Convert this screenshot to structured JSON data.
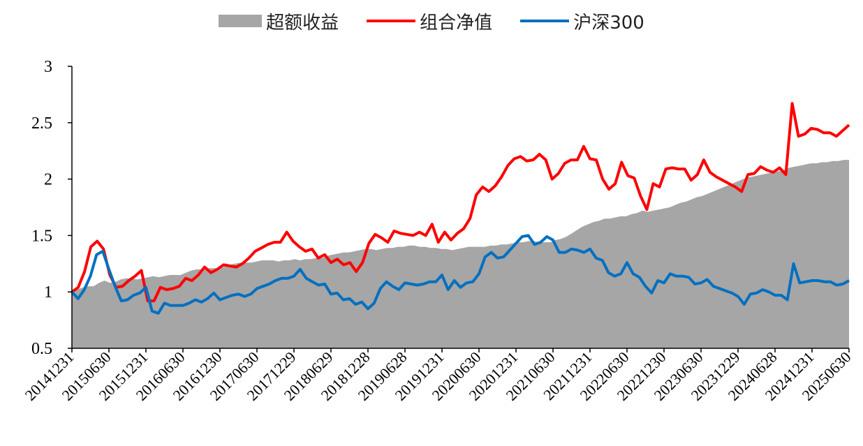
{
  "legend": {
    "area_label": "超额收益",
    "line1_label": "组合净值",
    "line2_label": "沪深300"
  },
  "colors": {
    "area": "#a6a6a6",
    "line1": "#ff0000",
    "line2": "#0070c0",
    "axis": "#000000"
  },
  "chart_data": {
    "type": "line",
    "ylim": [
      0.5,
      3
    ],
    "yticks": [
      "0.5",
      "1",
      "1.5",
      "2",
      "2.5",
      "3"
    ],
    "x_tick_labels": [
      "20141231",
      "20150630",
      "20151231",
      "20160630",
      "20161230",
      "20170630",
      "20171229",
      "20180629",
      "20181228",
      "20190628",
      "20191231",
      "20200630",
      "20201231",
      "20210630",
      "20211231",
      "20220630",
      "20221230",
      "20230630",
      "20231229",
      "20240628",
      "20241231",
      "20250630"
    ],
    "series": [
      {
        "name": "超额收益",
        "kind": "area",
        "values": [
          1.0,
          1.02,
          1.04,
          1.05,
          1.05,
          1.08,
          1.1,
          1.08,
          1.09,
          1.11,
          1.12,
          1.12,
          1.11,
          1.12,
          1.13,
          1.14,
          1.13,
          1.14,
          1.15,
          1.15,
          1.15,
          1.17,
          1.19,
          1.2,
          1.2,
          1.21,
          1.21,
          1.21,
          1.22,
          1.24,
          1.25,
          1.26,
          1.26,
          1.26,
          1.27,
          1.28,
          1.28,
          1.28,
          1.27,
          1.28,
          1.28,
          1.29,
          1.28,
          1.29,
          1.29,
          1.3,
          1.3,
          1.32,
          1.33,
          1.34,
          1.35,
          1.35,
          1.36,
          1.37,
          1.38,
          1.38,
          1.37,
          1.38,
          1.39,
          1.39,
          1.4,
          1.4,
          1.41,
          1.41,
          1.4,
          1.4,
          1.39,
          1.39,
          1.38,
          1.38,
          1.37,
          1.38,
          1.39,
          1.4,
          1.4,
          1.4,
          1.4,
          1.41,
          1.41,
          1.42,
          1.42,
          1.43,
          1.44,
          1.44,
          1.45,
          1.45,
          1.44,
          1.44,
          1.44,
          1.46,
          1.47,
          1.49,
          1.52,
          1.55,
          1.58,
          1.6,
          1.62,
          1.63,
          1.65,
          1.65,
          1.66,
          1.67,
          1.67,
          1.69,
          1.7,
          1.72,
          1.71,
          1.72,
          1.73,
          1.74,
          1.75,
          1.77,
          1.79,
          1.8,
          1.82,
          1.84,
          1.85,
          1.87,
          1.89,
          1.91,
          1.93,
          1.95,
          1.97,
          1.99,
          2.01,
          2.02,
          2.03,
          2.04,
          2.05,
          2.06,
          2.07,
          2.08,
          2.1,
          2.11,
          2.12,
          2.13,
          2.14,
          2.14,
          2.15,
          2.15,
          2.16,
          2.16,
          2.17,
          2.17
        ]
      },
      {
        "name": "组合净值",
        "kind": "line",
        "values": [
          1.0,
          1.04,
          1.18,
          1.4,
          1.45,
          1.38,
          1.15,
          1.04,
          1.05,
          1.1,
          1.14,
          1.19,
          0.92,
          0.92,
          1.04,
          1.02,
          1.03,
          1.05,
          1.12,
          1.1,
          1.15,
          1.22,
          1.17,
          1.2,
          1.24,
          1.23,
          1.22,
          1.25,
          1.3,
          1.36,
          1.39,
          1.42,
          1.44,
          1.44,
          1.53,
          1.45,
          1.4,
          1.36,
          1.38,
          1.3,
          1.33,
          1.26,
          1.29,
          1.24,
          1.26,
          1.18,
          1.26,
          1.43,
          1.51,
          1.48,
          1.44,
          1.54,
          1.52,
          1.51,
          1.5,
          1.53,
          1.5,
          1.6,
          1.44,
          1.53,
          1.46,
          1.52,
          1.56,
          1.65,
          1.86,
          1.93,
          1.89,
          1.94,
          2.02,
          2.12,
          2.18,
          2.2,
          2.16,
          2.17,
          2.22,
          2.17,
          2.0,
          2.05,
          2.14,
          2.17,
          2.17,
          2.29,
          2.18,
          2.17,
          2.0,
          1.91,
          1.96,
          2.15,
          2.03,
          2.01,
          1.85,
          1.73,
          1.96,
          1.93,
          2.09,
          2.1,
          2.09,
          2.09,
          1.99,
          2.04,
          2.17,
          2.06,
          2.02,
          1.99,
          1.96,
          1.93,
          1.89,
          2.04,
          2.05,
          2.11,
          2.08,
          2.06,
          2.1,
          2.04,
          2.67,
          2.38,
          2.4,
          2.45,
          2.44,
          2.41,
          2.41,
          2.38,
          2.43,
          2.48
        ]
      },
      {
        "name": "沪深300",
        "kind": "line",
        "values": [
          1.0,
          0.94,
          1.02,
          1.14,
          1.33,
          1.36,
          1.2,
          1.05,
          0.92,
          0.93,
          0.97,
          0.99,
          1.04,
          0.83,
          0.81,
          0.9,
          0.88,
          0.88,
          0.88,
          0.9,
          0.93,
          0.91,
          0.94,
          0.99,
          0.93,
          0.95,
          0.97,
          0.98,
          0.96,
          0.98,
          1.03,
          1.05,
          1.07,
          1.1,
          1.12,
          1.12,
          1.14,
          1.2,
          1.12,
          1.09,
          1.06,
          1.07,
          0.98,
          0.99,
          0.93,
          0.94,
          0.89,
          0.91,
          0.85,
          0.9,
          1.03,
          1.09,
          1.05,
          1.02,
          1.08,
          1.07,
          1.06,
          1.07,
          1.09,
          1.09,
          1.15,
          1.02,
          1.1,
          1.04,
          1.08,
          1.09,
          1.16,
          1.31,
          1.35,
          1.3,
          1.31,
          1.37,
          1.43,
          1.49,
          1.5,
          1.42,
          1.44,
          1.49,
          1.46,
          1.35,
          1.35,
          1.38,
          1.37,
          1.35,
          1.38,
          1.3,
          1.28,
          1.17,
          1.14,
          1.16,
          1.26,
          1.16,
          1.13,
          1.05,
          0.99,
          1.1,
          1.08,
          1.16,
          1.14,
          1.14,
          1.13,
          1.07,
          1.08,
          1.11,
          1.05,
          1.03,
          1.01,
          0.99,
          0.96,
          0.89,
          0.98,
          0.99,
          1.02,
          1.0,
          0.97,
          0.97,
          0.93,
          1.25,
          1.08,
          1.09,
          1.1,
          1.1,
          1.09,
          1.09,
          1.06,
          1.07,
          1.1
        ]
      }
    ]
  }
}
